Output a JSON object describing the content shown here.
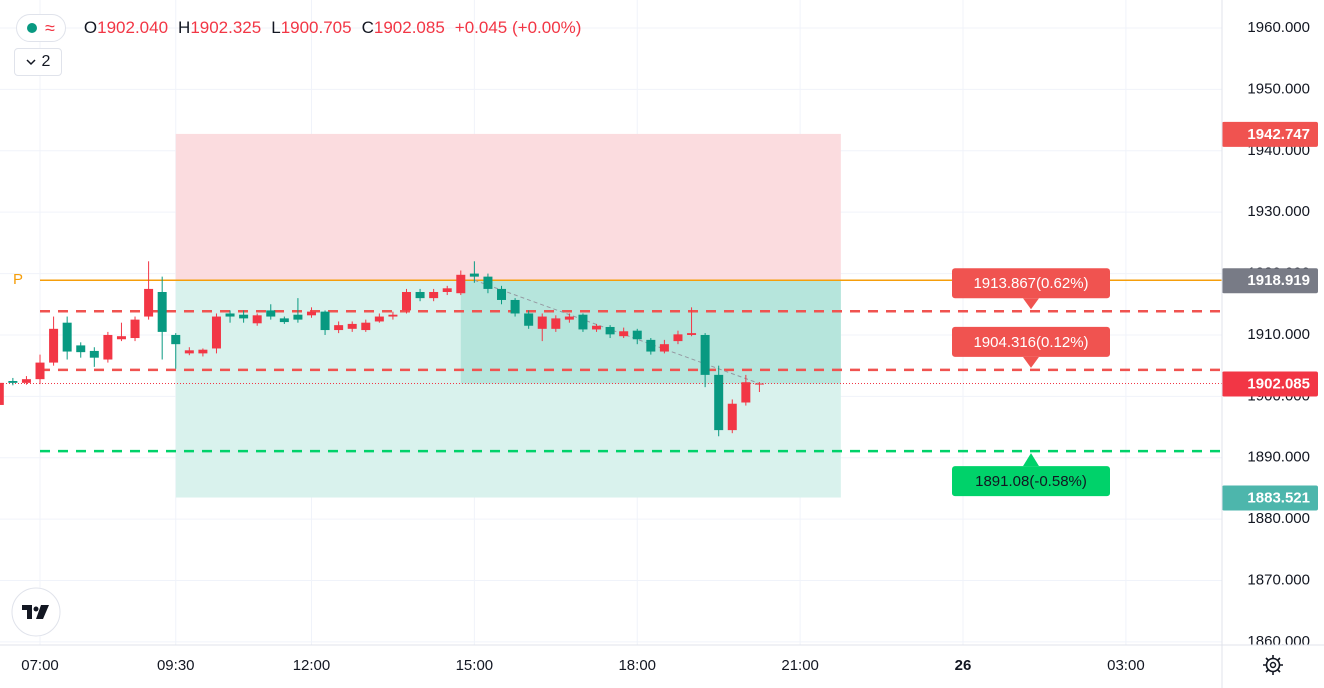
{
  "chart_data": {
    "type": "candlestick",
    "legend": {
      "symbol_badge": "≈",
      "interval_toggle": "2",
      "ohlc": [
        {
          "key": "O",
          "value": "1902.040"
        },
        {
          "key": "H",
          "value": "1902.325"
        },
        {
          "key": "L",
          "value": "1900.705"
        },
        {
          "key": "C",
          "value": "1902.085"
        }
      ],
      "change": "+0.045 (+0.00%)"
    },
    "x": [
      6.25,
      6.5,
      6.75,
      7,
      7.25,
      7.5,
      7.75,
      8,
      8.25,
      8.5,
      8.75,
      9,
      9.25,
      9.5,
      9.75,
      10,
      10.25,
      10.5,
      10.75,
      11,
      11.25,
      11.5,
      11.75,
      12,
      12.25,
      12.5,
      12.75,
      13,
      13.25,
      13.5,
      13.75,
      14,
      14.25,
      14.5,
      14.75,
      15,
      15.25,
      15.5,
      15.75,
      16,
      16.25,
      16.5,
      16.75,
      17,
      17.25,
      17.5,
      17.75,
      18,
      18.25,
      18.5,
      18.75,
      19,
      19.25,
      19.5,
      19.75,
      20,
      20.25
    ],
    "open": [
      1898.6,
      1902.5,
      1902.2,
      1902.8,
      1905.5,
      1912,
      1908.3,
      1907.4,
      1906,
      1909.3,
      1909.5,
      1913,
      1917,
      1910,
      1907,
      1907,
      1907.8,
      1913.5,
      1913.3,
      1911.9,
      1914,
      1912.7,
      1913.3,
      1913.2,
      1913.8,
      1910.8,
      1911,
      1910.8,
      1912.2,
      1913,
      1914,
      1917,
      1916,
      1917,
      1916.8,
      1920,
      1919.5,
      1917.5,
      1915.7,
      1913.5,
      1911,
      1911,
      1912.5,
      1913.3,
      1910.9,
      1911.3,
      1909.8,
      1910.7,
      1909.2,
      1907.3,
      1909,
      1910,
      1910,
      1903.5,
      1894.5,
      1899,
      1902.04
    ],
    "high": [
      1902.5,
      1903,
      1903.3,
      1906.8,
      1913,
      1913,
      1908.8,
      1908,
      1910.5,
      1912,
      1913,
      1922,
      1919.5,
      1910.3,
      1908,
      1907.8,
      1913.5,
      1914,
      1914,
      1913.5,
      1915,
      1913,
      1916,
      1914.5,
      1914,
      1912.2,
      1912.2,
      1912.5,
      1913.5,
      1913.8,
      1917.5,
      1917.5,
      1917.5,
      1918,
      1920.5,
      1922,
      1920,
      1918,
      1916,
      1914,
      1913.5,
      1913.2,
      1913.5,
      1913.5,
      1911.8,
      1911.6,
      1911.2,
      1911,
      1909.5,
      1909.2,
      1910.7,
      1914.5,
      1910.3,
      1905,
      1899.5,
      1903.5,
      1902.325
    ],
    "low": [
      1898.5,
      1901.8,
      1901.9,
      1902,
      1905,
      1906,
      1906.3,
      1904.8,
      1905.5,
      1909,
      1909,
      1912.5,
      1906,
      1904.5,
      1906.7,
      1906.5,
      1907,
      1912,
      1912,
      1911.5,
      1912.5,
      1911.8,
      1912,
      1912.8,
      1910,
      1910.3,
      1910.5,
      1910.5,
      1912,
      1912.5,
      1913.5,
      1915.5,
      1915.5,
      1916.5,
      1916.5,
      1918.5,
      1916.8,
      1915,
      1913,
      1911,
      1909,
      1910.5,
      1912,
      1910.5,
      1910.5,
      1909.5,
      1909.5,
      1908.5,
      1906.8,
      1907,
      1908.5,
      1909.8,
      1901.5,
      1893.5,
      1894,
      1898.5,
      1900.705
    ],
    "close": [
      1902.2,
      1902.2,
      1902.8,
      1905.5,
      1911,
      1907.3,
      1907.2,
      1906.3,
      1910,
      1909.8,
      1912.5,
      1917.5,
      1910.5,
      1908.5,
      1907.5,
      1907.6,
      1913,
      1913,
      1912.7,
      1913.2,
      1913,
      1912.1,
      1912.5,
      1913.8,
      1910.8,
      1911.6,
      1911.8,
      1912,
      1913,
      1913.3,
      1917,
      1916,
      1917,
      1917.6,
      1919.8,
      1919.5,
      1917.5,
      1915.7,
      1913.5,
      1911.5,
      1913,
      1912.7,
      1913,
      1910.9,
      1911.5,
      1910.1,
      1910.6,
      1909.3,
      1907.3,
      1908.5,
      1910.1,
      1910.3,
      1903.5,
      1894.5,
      1898.8,
      1902.3,
      1902.085
    ],
    "up_color": "#f23645",
    "down_color": "#089981",
    "xlim": [
      6.263,
      28.77
    ],
    "xticks": [
      {
        "value": 7,
        "label": "07:00"
      },
      {
        "value": 9.5,
        "label": "09:30"
      },
      {
        "value": 12,
        "label": "12:00"
      },
      {
        "value": 15,
        "label": "15:00"
      },
      {
        "value": 18,
        "label": "18:00"
      },
      {
        "value": 21,
        "label": "21:00"
      },
      {
        "value": 24,
        "label": "26"
      },
      {
        "value": 27,
        "label": "03:00"
      }
    ],
    "ylim": [
      1859.5,
      1964.56
    ],
    "yticks": [
      {
        "value": 1860,
        "label": "1860.000"
      },
      {
        "value": 1870,
        "label": "1870.000"
      },
      {
        "value": 1880,
        "label": "1880.000"
      },
      {
        "value": 1890,
        "label": "1890.000"
      },
      {
        "value": 1900,
        "label": "1900.000"
      },
      {
        "value": 1910,
        "label": "1910.000"
      },
      {
        "value": 1920,
        "label": "1920.000"
      },
      {
        "value": 1930,
        "label": "1930.000"
      },
      {
        "value": 1940,
        "label": "1940.000"
      },
      {
        "value": 1950,
        "label": "1950.000"
      },
      {
        "value": 1960,
        "label": "1960.000"
      }
    ],
    "grid": true,
    "position": {
      "start": 9.5,
      "end": 21.75,
      "fill_start": 14.75,
      "stop_loss": {
        "value": 1942.747,
        "label": "1942.747"
      },
      "entry": {
        "value": 1918.919,
        "label": "1918.919",
        "marker": "P"
      },
      "take_profit": {
        "value": 1883.521,
        "label": "1883.521"
      }
    },
    "orders": [
      {
        "value": 1913.867,
        "label": "1913.867(0.62%)",
        "color": "#f05350"
      },
      {
        "value": 1904.316,
        "label": "1904.316(0.12%)",
        "color": "#f05350"
      },
      {
        "value": 1891.08,
        "label": "1891.08(-0.58%)",
        "color": "#00d26a"
      }
    ],
    "last_price": {
      "value": 1902.085,
      "label": "1902.085"
    }
  }
}
